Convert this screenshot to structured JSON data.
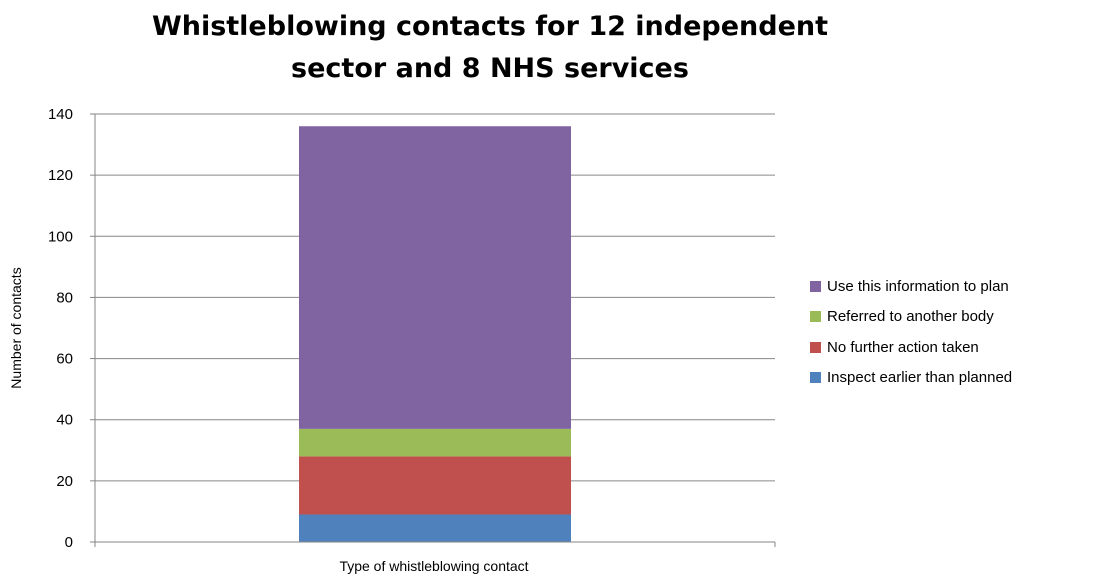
{
  "chart_data": {
    "type": "bar",
    "stacked": true,
    "title": "Whistleblowing contacts for 12 independent sector and 8 NHS services",
    "xlabel": "Type of whistleblowing contact",
    "ylabel": "Number of contacts",
    "categories": [
      ""
    ],
    "ylim": [
      0,
      140
    ],
    "yticks": [
      0,
      20,
      40,
      60,
      80,
      100,
      120,
      140
    ],
    "grid": true,
    "legend_position": "right",
    "series": [
      {
        "name": "Inspect earlier than planned",
        "values": [
          9
        ],
        "color": "#4f81bd"
      },
      {
        "name": "No further action taken",
        "values": [
          19
        ],
        "color": "#c0504d"
      },
      {
        "name": "Referred to another body",
        "values": [
          9
        ],
        "color": "#9bbb59"
      },
      {
        "name": "Use this information to plan",
        "values": [
          99
        ],
        "color": "#8064a2"
      }
    ]
  }
}
